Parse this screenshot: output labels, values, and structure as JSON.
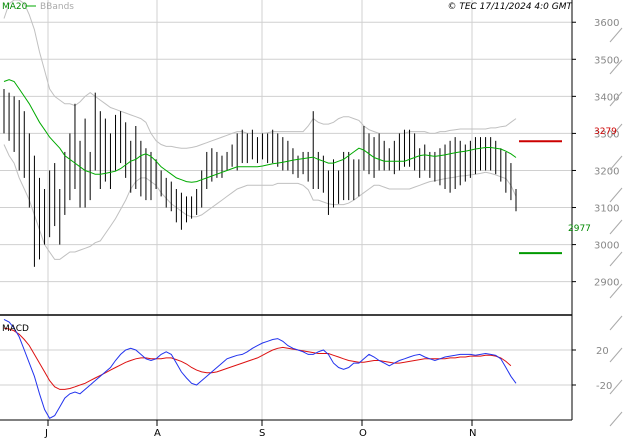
{
  "header": {
    "ma_label": "MA20",
    "bb_label": "BBands",
    "copyright": "© TEC 17/11/2024 4:0 GMT"
  },
  "colors": {
    "grid": "#d0d0d0",
    "bar": "#000000",
    "ma": "#00aa00",
    "bbands": "#c0c0c0",
    "macd": "#2233ee",
    "signal": "#dd1111",
    "resistance": "#cc0000",
    "support": "#009900"
  },
  "chart_data": [
    {
      "type": "ohlc",
      "y_ticks": [
        2900,
        3000,
        3100,
        3200,
        3300,
        3400,
        3500,
        3600
      ],
      "ylim": [
        2810,
        3660
      ],
      "months": [
        "J",
        "A",
        "S",
        "O",
        "N"
      ],
      "level_labels": {
        "resistance": "3279",
        "support": "2977"
      },
      "levels": {
        "resistance": 3279,
        "support": 2977
      },
      "ma20": [
        3440,
        3445,
        3440,
        3420,
        3400,
        3380,
        3355,
        3330,
        3310,
        3290,
        3275,
        3260,
        3240,
        3230,
        3220,
        3210,
        3200,
        3195,
        3190,
        3190,
        3192,
        3195,
        3198,
        3205,
        3215,
        3225,
        3230,
        3240,
        3245,
        3238,
        3225,
        3210,
        3200,
        3190,
        3180,
        3175,
        3170,
        3168,
        3170,
        3175,
        3180,
        3185,
        3190,
        3195,
        3200,
        3205,
        3210,
        3210,
        3210,
        3210,
        3210,
        3212,
        3215,
        3218,
        3220,
        3222,
        3225,
        3228,
        3230,
        3232,
        3234,
        3236,
        3230,
        3225,
        3220,
        3220,
        3225,
        3230,
        3240,
        3250,
        3260,
        3255,
        3245,
        3235,
        3230,
        3225,
        3225,
        3225,
        3225,
        3225,
        3230,
        3235,
        3240,
        3242,
        3240,
        3238,
        3240,
        3242,
        3245,
        3248,
        3250,
        3252,
        3255,
        3258,
        3260,
        3262,
        3262,
        3260,
        3258,
        3252,
        3245,
        3235
      ],
      "bb_upper": [
        3610,
        3650,
        3660,
        3660,
        3650,
        3620,
        3580,
        3520,
        3470,
        3420,
        3400,
        3390,
        3380,
        3380,
        3375,
        3385,
        3400,
        3410,
        3400,
        3390,
        3380,
        3370,
        3365,
        3360,
        3355,
        3350,
        3345,
        3340,
        3330,
        3300,
        3280,
        3270,
        3265,
        3265,
        3262,
        3260,
        3260,
        3262,
        3265,
        3270,
        3275,
        3280,
        3285,
        3290,
        3295,
        3300,
        3305,
        3305,
        3300,
        3300,
        3300,
        3300,
        3302,
        3305,
        3305,
        3305,
        3305,
        3305,
        3305,
        3305,
        3320,
        3340,
        3330,
        3325,
        3325,
        3330,
        3340,
        3345,
        3345,
        3340,
        3335,
        3320,
        3310,
        3305,
        3300,
        3300,
        3300,
        3300,
        3300,
        3300,
        3305,
        3305,
        3305,
        3305,
        3300,
        3300,
        3305,
        3305,
        3308,
        3310,
        3312,
        3312,
        3312,
        3312,
        3312,
        3312,
        3315,
        3315,
        3318,
        3320,
        3330,
        3340
      ],
      "bb_lower": [
        3270,
        3240,
        3220,
        3180,
        3150,
        3120,
        3080,
        3040,
        3000,
        2980,
        2960,
        2960,
        2970,
        2980,
        2980,
        2985,
        2990,
        2995,
        3005,
        3010,
        3030,
        3050,
        3070,
        3095,
        3120,
        3150,
        3170,
        3180,
        3180,
        3170,
        3160,
        3140,
        3125,
        3110,
        3100,
        3090,
        3080,
        3075,
        3075,
        3080,
        3090,
        3100,
        3110,
        3120,
        3130,
        3140,
        3150,
        3155,
        3160,
        3160,
        3160,
        3160,
        3160,
        3160,
        3165,
        3165,
        3165,
        3165,
        3165,
        3160,
        3148,
        3120,
        3120,
        3115,
        3110,
        3108,
        3108,
        3108,
        3112,
        3120,
        3130,
        3140,
        3150,
        3160,
        3160,
        3155,
        3150,
        3150,
        3150,
        3150,
        3150,
        3155,
        3160,
        3165,
        3170,
        3172,
        3175,
        3178,
        3180,
        3182,
        3185,
        3186,
        3188,
        3190,
        3192,
        3195,
        3192,
        3188,
        3183,
        3178,
        3160,
        3130
      ],
      "bars": [
        {
          "h": 3420,
          "l": 3300
        },
        {
          "h": 3410,
          "l": 3280
        },
        {
          "h": 3400,
          "l": 3250
        },
        {
          "h": 3390,
          "l": 3200
        },
        {
          "h": 3360,
          "l": 3180
        },
        {
          "h": 3300,
          "l": 3100
        },
        {
          "h": 3240,
          "l": 2940
        },
        {
          "h": 3180,
          "l": 2960
        },
        {
          "h": 3150,
          "l": 3000
        },
        {
          "h": 3200,
          "l": 3020
        },
        {
          "h": 3220,
          "l": 3050
        },
        {
          "h": 3150,
          "l": 3000
        },
        {
          "h": 3250,
          "l": 3080
        },
        {
          "h": 3300,
          "l": 3120
        },
        {
          "h": 3380,
          "l": 3150
        },
        {
          "h": 3280,
          "l": 3100
        },
        {
          "h": 3340,
          "l": 3100
        },
        {
          "h": 3250,
          "l": 3120
        },
        {
          "h": 3410,
          "l": 3200
        },
        {
          "h": 3360,
          "l": 3150
        },
        {
          "h": 3340,
          "l": 3170
        },
        {
          "h": 3300,
          "l": 3150
        },
        {
          "h": 3350,
          "l": 3200
        },
        {
          "h": 3360,
          "l": 3220
        },
        {
          "h": 3330,
          "l": 3180
        },
        {
          "h": 3280,
          "l": 3140
        },
        {
          "h": 3320,
          "l": 3150
        },
        {
          "h": 3280,
          "l": 3130
        },
        {
          "h": 3260,
          "l": 3120
        },
        {
          "h": 3250,
          "l": 3120
        },
        {
          "h": 3230,
          "l": 3150
        },
        {
          "h": 3200,
          "l": 3130
        },
        {
          "h": 3180,
          "l": 3100
        },
        {
          "h": 3170,
          "l": 3090
        },
        {
          "h": 3150,
          "l": 3060
        },
        {
          "h": 3140,
          "l": 3040
        },
        {
          "h": 3130,
          "l": 3060
        },
        {
          "h": 3130,
          "l": 3070
        },
        {
          "h": 3150,
          "l": 3080
        },
        {
          "h": 3200,
          "l": 3100
        },
        {
          "h": 3250,
          "l": 3150
        },
        {
          "h": 3260,
          "l": 3170
        },
        {
          "h": 3250,
          "l": 3180
        },
        {
          "h": 3240,
          "l": 3180
        },
        {
          "h": 3250,
          "l": 3200
        },
        {
          "h": 3270,
          "l": 3210
        },
        {
          "h": 3300,
          "l": 3200
        },
        {
          "h": 3310,
          "l": 3220
        },
        {
          "h": 3300,
          "l": 3220
        },
        {
          "h": 3310,
          "l": 3230
        },
        {
          "h": 3290,
          "l": 3220
        },
        {
          "h": 3300,
          "l": 3230
        },
        {
          "h": 3300,
          "l": 3220
        },
        {
          "h": 3310,
          "l": 3220
        },
        {
          "h": 3300,
          "l": 3210
        },
        {
          "h": 3290,
          "l": 3200
        },
        {
          "h": 3280,
          "l": 3200
        },
        {
          "h": 3260,
          "l": 3190
        },
        {
          "h": 3240,
          "l": 3180
        },
        {
          "h": 3250,
          "l": 3190
        },
        {
          "h": 3250,
          "l": 3170
        },
        {
          "h": 3360,
          "l": 3150
        },
        {
          "h": 3250,
          "l": 3150
        },
        {
          "h": 3240,
          "l": 3140
        },
        {
          "h": 3200,
          "l": 3080
        },
        {
          "h": 3230,
          "l": 3100
        },
        {
          "h": 3200,
          "l": 3110
        },
        {
          "h": 3250,
          "l": 3120
        },
        {
          "h": 3250,
          "l": 3120
        },
        {
          "h": 3230,
          "l": 3120
        },
        {
          "h": 3230,
          "l": 3130
        },
        {
          "h": 3320,
          "l": 3200
        },
        {
          "h": 3300,
          "l": 3190
        },
        {
          "h": 3290,
          "l": 3180
        },
        {
          "h": 3300,
          "l": 3200
        },
        {
          "h": 3280,
          "l": 3200
        },
        {
          "h": 3260,
          "l": 3200
        },
        {
          "h": 3280,
          "l": 3190
        },
        {
          "h": 3300,
          "l": 3200
        },
        {
          "h": 3310,
          "l": 3210
        },
        {
          "h": 3310,
          "l": 3210
        },
        {
          "h": 3300,
          "l": 3200
        },
        {
          "h": 3260,
          "l": 3180
        },
        {
          "h": 3270,
          "l": 3200
        },
        {
          "h": 3250,
          "l": 3180
        },
        {
          "h": 3250,
          "l": 3170
        },
        {
          "h": 3260,
          "l": 3160
        },
        {
          "h": 3270,
          "l": 3150
        },
        {
          "h": 3280,
          "l": 3140
        },
        {
          "h": 3290,
          "l": 3150
        },
        {
          "h": 3280,
          "l": 3160
        },
        {
          "h": 3270,
          "l": 3170
        },
        {
          "h": 3280,
          "l": 3180
        },
        {
          "h": 3290,
          "l": 3190
        },
        {
          "h": 3290,
          "l": 3200
        },
        {
          "h": 3290,
          "l": 3200
        },
        {
          "h": 3290,
          "l": 3200
        },
        {
          "h": 3280,
          "l": 3190
        },
        {
          "h": 3260,
          "l": 3170
        },
        {
          "h": 3250,
          "l": 3140
        },
        {
          "h": 3220,
          "l": 3120
        },
        {
          "h": 3150,
          "l": 3090
        }
      ]
    },
    {
      "type": "line",
      "title": "MACD",
      "y_ticks": [
        20,
        -20
      ],
      "y_tick_labels": [
        "20",
        "-20"
      ],
      "ylim": [
        -60,
        60
      ],
      "macd": [
        55,
        52,
        45,
        35,
        20,
        5,
        -10,
        -30,
        -48,
        -58,
        -55,
        -45,
        -35,
        -30,
        -28,
        -30,
        -25,
        -20,
        -15,
        -10,
        -5,
        0,
        8,
        15,
        20,
        22,
        20,
        15,
        10,
        8,
        10,
        15,
        18,
        15,
        5,
        -5,
        -12,
        -18,
        -20,
        -15,
        -10,
        -5,
        0,
        5,
        10,
        12,
        14,
        15,
        18,
        22,
        25,
        28,
        30,
        32,
        33,
        30,
        25,
        22,
        20,
        18,
        15,
        15,
        18,
        20,
        15,
        5,
        0,
        -2,
        0,
        5,
        5,
        10,
        15,
        12,
        8,
        5,
        2,
        5,
        8,
        10,
        12,
        14,
        15,
        12,
        10,
        8,
        10,
        12,
        13,
        14,
        15,
        15,
        15,
        14,
        15,
        16,
        15,
        14,
        10,
        0,
        -10,
        -18
      ],
      "signal": [
        45,
        44,
        42,
        38,
        32,
        25,
        15,
        5,
        -5,
        -15,
        -22,
        -25,
        -25,
        -24,
        -22,
        -20,
        -18,
        -15,
        -12,
        -9,
        -6,
        -3,
        0,
        3,
        6,
        8,
        10,
        11,
        11,
        10,
        10,
        10,
        11,
        11,
        9,
        7,
        4,
        0,
        -3,
        -5,
        -6,
        -6,
        -5,
        -3,
        -1,
        1,
        3,
        5,
        7,
        9,
        11,
        14,
        17,
        20,
        22,
        23,
        22,
        21,
        20,
        19,
        18,
        17,
        16,
        16,
        16,
        14,
        12,
        10,
        8,
        7,
        6,
        6,
        7,
        8,
        8,
        7,
        6,
        5,
        5,
        6,
        7,
        8,
        9,
        10,
        10,
        10,
        10,
        10,
        11,
        11,
        12,
        12,
        13,
        13,
        13,
        14,
        14,
        13,
        11,
        7,
        2
      ]
    }
  ]
}
